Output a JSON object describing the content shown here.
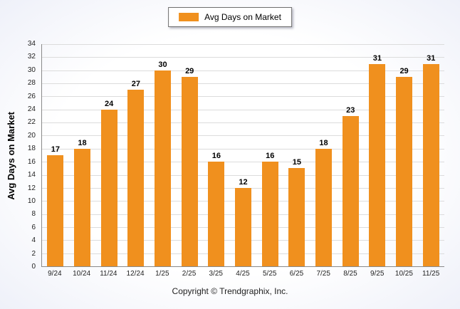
{
  "chart_data": {
    "type": "bar",
    "title": "",
    "legend": "Avg Days on Market",
    "ylabel": "Avg Days on Market",
    "xlabel": "",
    "categories": [
      "9/24",
      "10/24",
      "11/24",
      "12/24",
      "1/25",
      "2/25",
      "3/25",
      "4/25",
      "5/25",
      "6/25",
      "7/25",
      "8/25",
      "9/25",
      "10/25",
      "11/25"
    ],
    "values": [
      17,
      18,
      24,
      27,
      30,
      29,
      16,
      12,
      16,
      15,
      18,
      23,
      31,
      29,
      31
    ],
    "ylim": [
      0,
      34
    ],
    "ytick_step": 2,
    "grid": "horizontal",
    "legend_position": "top-center",
    "bar_color": "#F0901E"
  },
  "footer": {
    "copyright": "Copyright © Trendgraphix, Inc."
  }
}
